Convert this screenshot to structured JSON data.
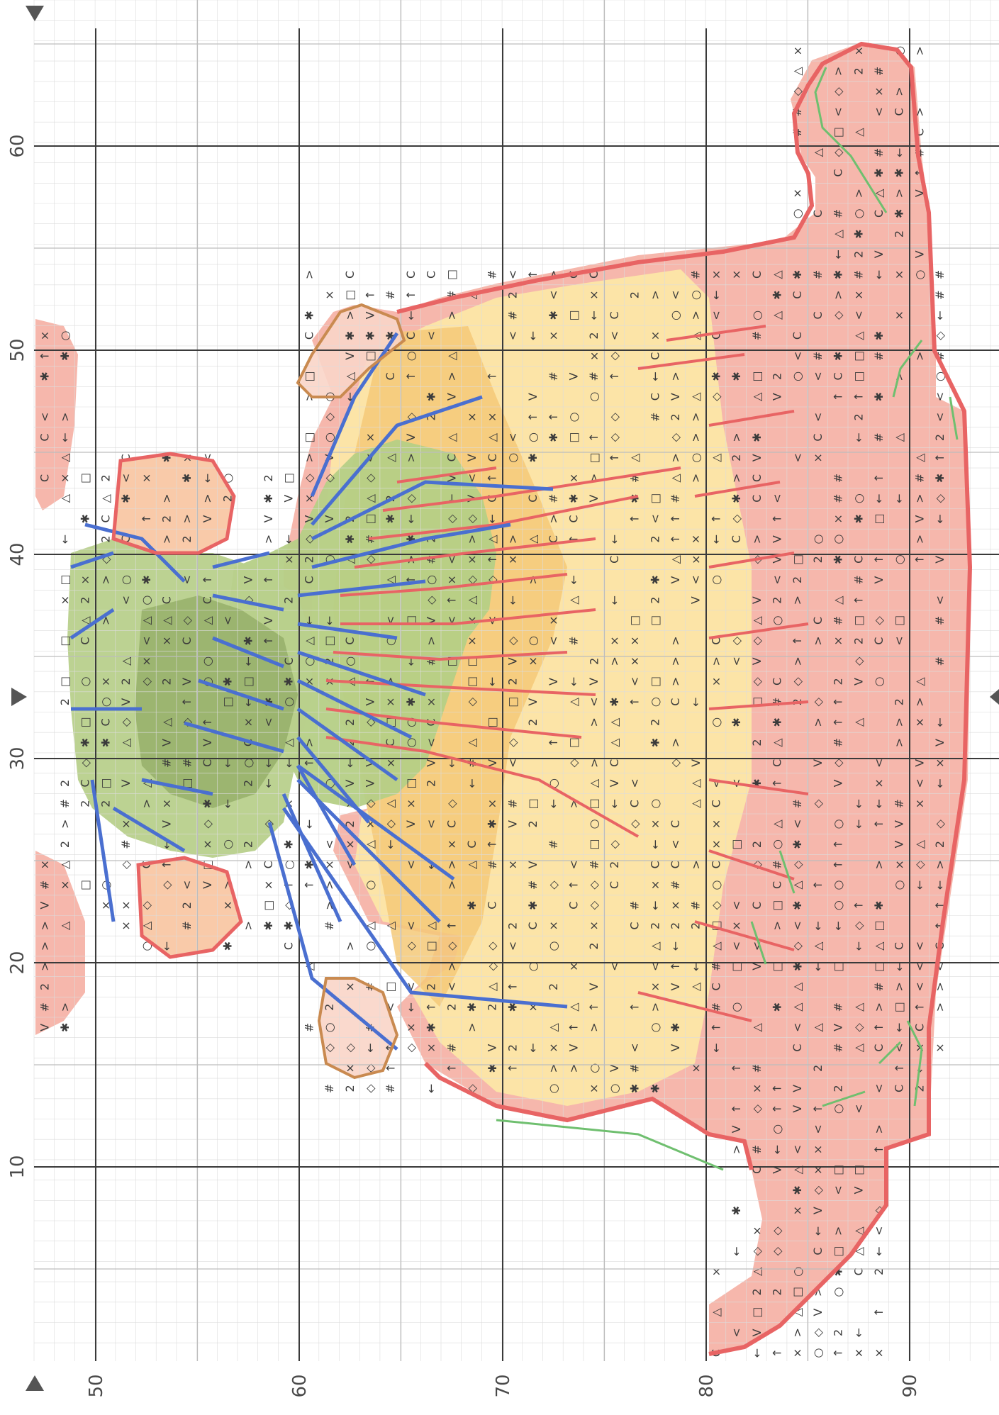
{
  "pattern": {
    "x_axis_labels": [
      "10",
      "20",
      "30",
      "40",
      "50",
      "60"
    ],
    "y_axis_labels": [
      "50",
      "60",
      "70",
      "80",
      "90"
    ],
    "colors": {
      "grid_minor": "#c8c8c8",
      "grid_major": "#3a3a3a",
      "petal_pink": "#f4a79f",
      "petal_red": "#ec6b6b",
      "petal_yellow": "#fce39a",
      "petal_orange": "#f6c56c",
      "center_green": "#a8c47a",
      "center_dark": "#6f8f4e",
      "outline_blue": "#4a6fd0",
      "outline_red": "#e86060",
      "outline_brown": "#c98a50",
      "outline_green": "#6fbf6f"
    },
    "markers": {
      "top_left": "down-triangle",
      "bottom_left": "up-triangle",
      "left_middle": "right-triangle",
      "right_middle": "left-triangle"
    }
  }
}
